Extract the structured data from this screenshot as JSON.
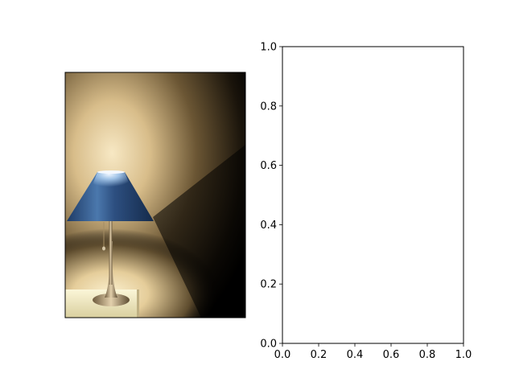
{
  "figure": {
    "background": "#ffffff"
  },
  "image_panel": {
    "subject": "table-lamp-photo",
    "colors": {
      "wall_light": "#f3dfb4",
      "wall_dark": "#000000",
      "shade_blue": "#2d4f80",
      "shade_highlight": "#cfe3f5",
      "lamp_metal": "#b79c73",
      "table_top": "#f7f1cc"
    }
  },
  "chart_data": [
    {
      "type": "image",
      "title": "",
      "xlabel": "",
      "ylabel": "",
      "axis": "off"
    },
    {
      "type": "scatter",
      "title": "",
      "xlabel": "",
      "ylabel": "",
      "xlim": [
        0.0,
        1.0
      ],
      "ylim": [
        0.0,
        1.0
      ],
      "xticks": [
        "0.0",
        "0.2",
        "0.4",
        "0.6",
        "0.8",
        "1.0"
      ],
      "yticks": [
        "0.0",
        "0.2",
        "0.4",
        "0.6",
        "0.8",
        "1.0"
      ],
      "series": [],
      "grid": false,
      "legend": "none"
    }
  ]
}
